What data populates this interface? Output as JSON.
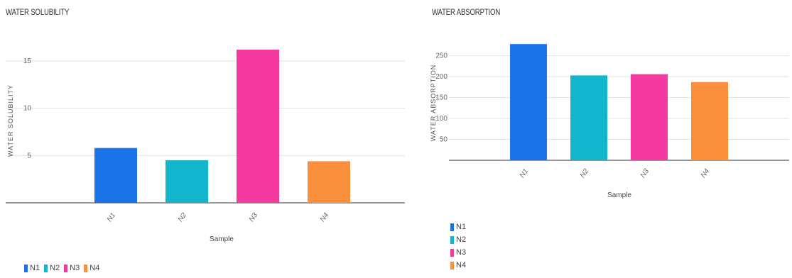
{
  "chart_data": [
    {
      "type": "bar",
      "title": "WATER SOLUBILITY",
      "xlabel": "Sample",
      "ylabel": "WATER SOLUBILITY",
      "categories": [
        "N1",
        "N2",
        "N3",
        "N4"
      ],
      "values": [
        5.8,
        4.5,
        16.2,
        4.4
      ],
      "colors": [
        "#1a73e8",
        "#12b5cb",
        "#f439a0",
        "#fa903e"
      ],
      "yticks": [
        5,
        10,
        15
      ],
      "ylim": [
        0,
        18
      ],
      "grid": true,
      "legend_position": "bottom"
    },
    {
      "type": "bar",
      "title": "WATER ABSORPTION",
      "xlabel": "Sample",
      "ylabel": "WATER ABSORPTION",
      "categories": [
        "N1",
        "N2",
        "N3",
        "N4"
      ],
      "values": [
        278,
        203,
        206,
        187
      ],
      "colors": [
        "#1a73e8",
        "#12b5cb",
        "#f439a0",
        "#fa903e"
      ],
      "yticks": [
        50,
        100,
        150,
        200,
        250
      ],
      "ylim": [
        0,
        280
      ],
      "grid": true,
      "legend_position": "bottom-left (vertical)"
    }
  ]
}
